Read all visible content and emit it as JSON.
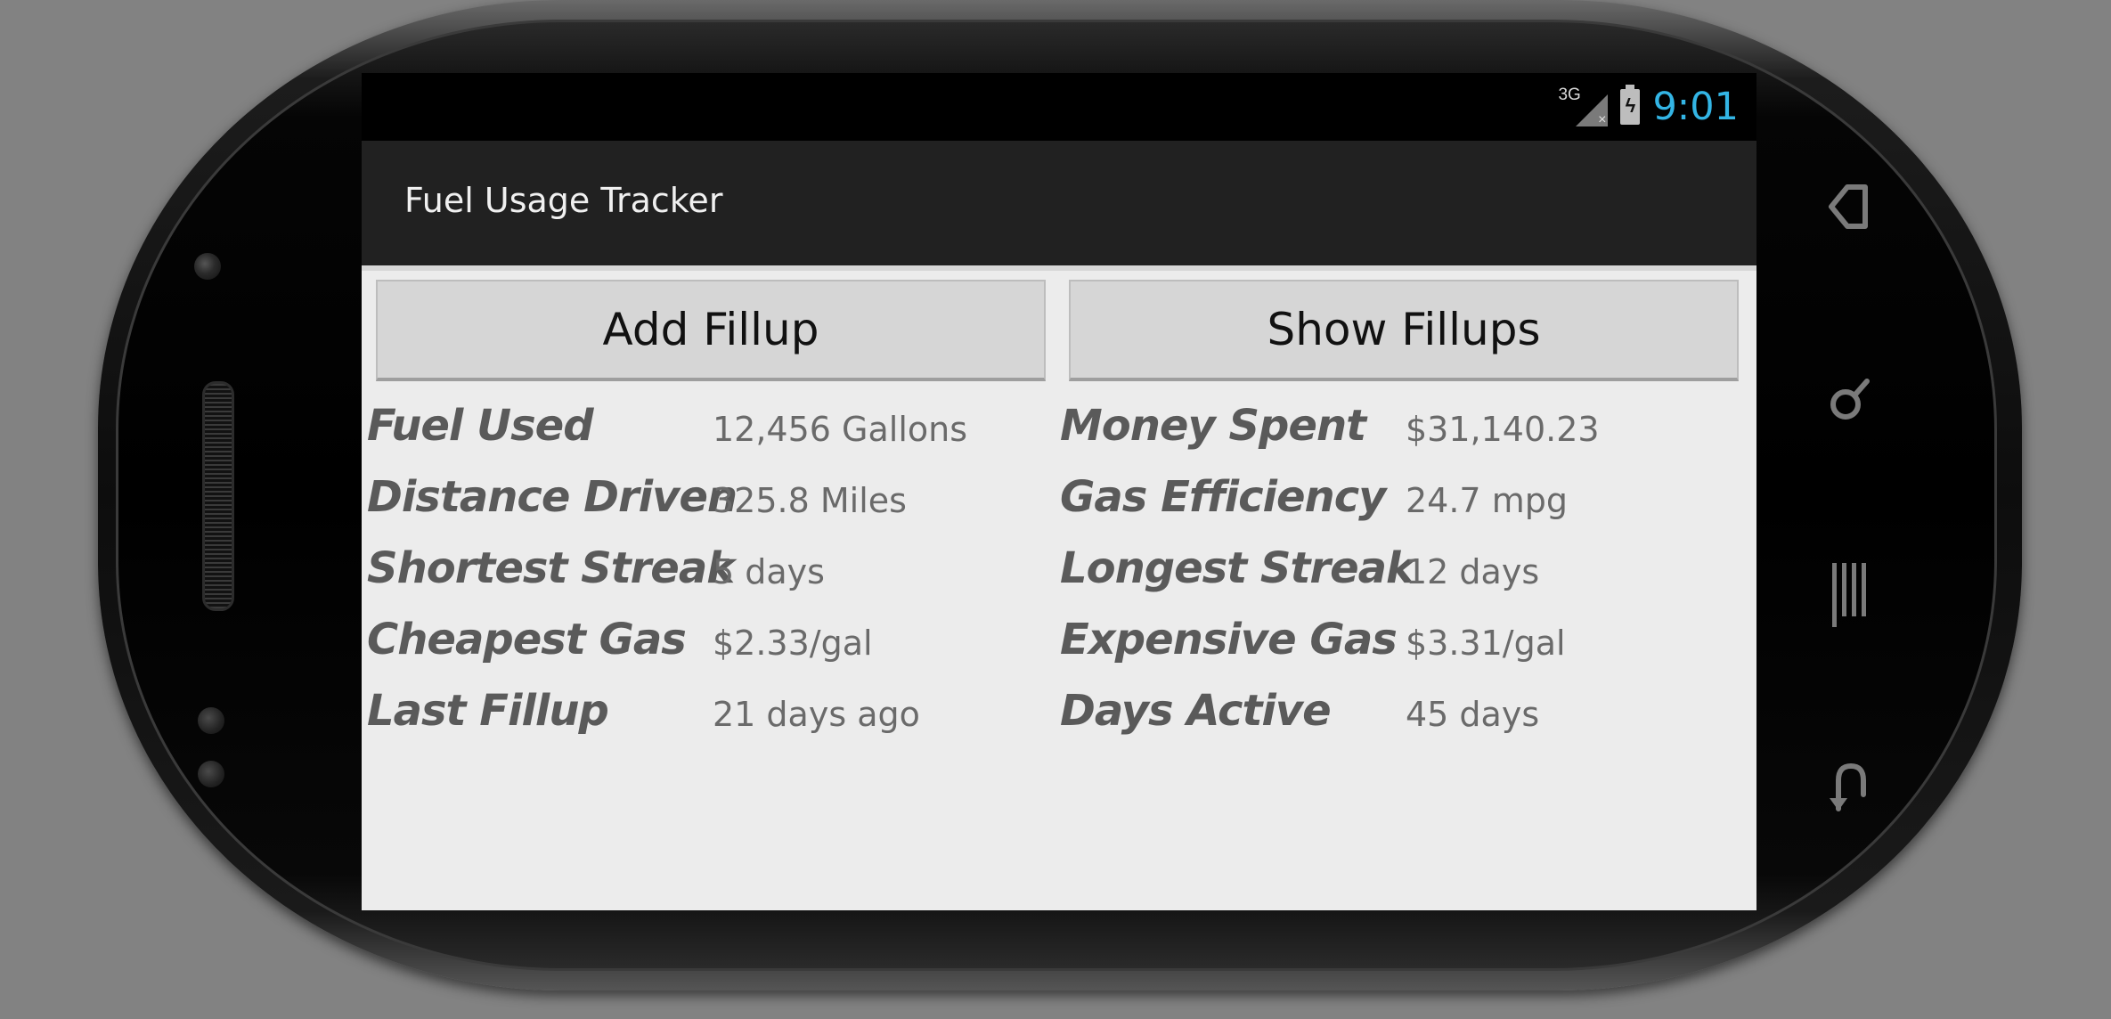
{
  "status_bar": {
    "network": "3G",
    "time": "9:01"
  },
  "app": {
    "title": "Fuel Usage Tracker"
  },
  "buttons": {
    "add_fillup": "Add Fillup",
    "show_fillups": "Show Fillups"
  },
  "stats": {
    "left": [
      {
        "label": "Fuel Used",
        "value": "12,456 Gallons"
      },
      {
        "label": "Distance Driven",
        "value": "325.8 Miles"
      },
      {
        "label": "Shortest Streak",
        "value": "5 days"
      },
      {
        "label": "Cheapest Gas",
        "value": "$2.33/gal"
      },
      {
        "label": "Last Fillup",
        "value": "21 days ago"
      }
    ],
    "right": [
      {
        "label": "Money Spent",
        "value": "$31,140.23"
      },
      {
        "label": "Gas Efficiency",
        "value": "24.7 mpg"
      },
      {
        "label": "Longest Streak",
        "value": "12 days"
      },
      {
        "label": "Expensive Gas",
        "value": "$3.31/gal"
      },
      {
        "label": "Days Active",
        "value": "45 days"
      }
    ]
  },
  "nav": {
    "icons": [
      "back-icon",
      "search-icon",
      "menu-icon",
      "return-icon"
    ]
  },
  "colors": {
    "clock": "#33b5e5",
    "action_bar": "#212121",
    "content_bg": "#ececec",
    "button_bg": "#d6d6d6"
  }
}
